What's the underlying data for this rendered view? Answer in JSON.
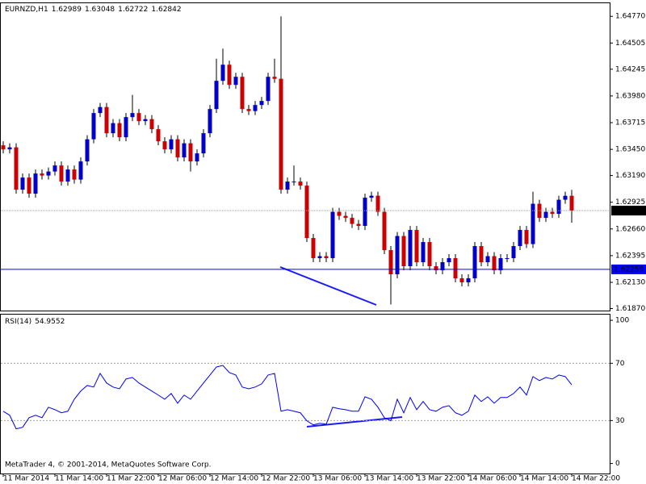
{
  "chart_data": [
    {
      "type": "candlestick",
      "title": "EURNZD,H1",
      "categories": [
        "11 Mar 2014",
        null,
        null,
        null,
        null,
        null,
        null,
        null,
        "11 Mar 14:00",
        null,
        null,
        null,
        null,
        null,
        null,
        null,
        "11 Mar 22:00",
        null,
        null,
        null,
        null,
        null,
        null,
        null,
        "12 Mar 06:00",
        null,
        null,
        null,
        null,
        null,
        null,
        null,
        "12 Mar 14:00",
        null,
        null,
        null,
        null,
        null,
        null,
        null,
        "12 Mar 22:00",
        null,
        null,
        null,
        null,
        null,
        null,
        null,
        "13 Mar 06:00",
        null,
        null,
        null,
        null,
        null,
        null,
        null,
        "13 Mar 14:00",
        null,
        null,
        null,
        null,
        null,
        null,
        null,
        "13 Mar 22:00",
        null,
        null,
        null,
        null,
        null,
        null,
        null,
        "14 Mar 06:00",
        null,
        null,
        null,
        null,
        null,
        null,
        null,
        "14 Mar 14:00",
        null,
        null,
        null,
        null,
        null,
        null,
        null,
        "14 Mar 22:00"
      ],
      "open": [
        1.6349,
        1.6345,
        1.6347,
        1.6305,
        1.6317,
        1.6301,
        1.6321,
        1.6319,
        1.6323,
        1.6329,
        1.6313,
        1.6325,
        1.6315,
        1.6333,
        1.6355,
        1.6381,
        1.6387,
        1.6361,
        1.6371,
        1.6357,
        1.6377,
        1.6381,
        1.6373,
        1.6375,
        1.6365,
        1.6353,
        1.6345,
        1.6355,
        1.6337,
        1.6351,
        1.6333,
        1.6341,
        1.6361,
        1.6385,
        1.6413,
        1.6429,
        1.6409,
        1.6417,
        1.6385,
        1.6383,
        1.6389,
        1.6393,
        1.6417,
        1.6415,
        1.6305,
        1.6313,
        1.6313,
        1.6309,
        1.6257,
        1.6237,
        1.6239,
        1.6237,
        1.6283,
        1.6279,
        1.6277,
        1.6271,
        1.6269,
        1.6297,
        1.6299,
        1.6283,
        1.6245,
        1.6221,
        1.6259,
        1.6229,
        1.6265,
        1.6233,
        1.6253,
        1.6229,
        1.6225,
        1.6233,
        1.6237,
        1.6217,
        1.6213,
        1.6217,
        1.6249,
        1.6233,
        1.6239,
        1.6225,
        1.6237,
        1.6237,
        1.6249,
        1.6265,
        1.6251,
        1.6291,
        1.6277,
        1.6283,
        1.6281,
        1.6295,
        1.62989
      ],
      "high": [
        1.6353,
        1.6351,
        1.6351,
        1.6321,
        1.6321,
        1.6325,
        1.6325,
        1.6327,
        1.6333,
        1.6333,
        1.6329,
        1.6329,
        1.6337,
        1.6359,
        1.6385,
        1.6391,
        1.6391,
        1.6375,
        1.6375,
        1.6381,
        1.6399,
        1.6385,
        1.6379,
        1.6379,
        1.6369,
        1.6357,
        1.6359,
        1.6359,
        1.6355,
        1.6355,
        1.6345,
        1.6365,
        1.6389,
        1.6435,
        1.6445,
        1.6433,
        1.6421,
        1.6421,
        1.6389,
        1.6393,
        1.6397,
        1.6421,
        1.6435,
        1.6477,
        1.6317,
        1.6329,
        1.6317,
        1.6313,
        1.6261,
        1.6243,
        1.6243,
        1.6287,
        1.6287,
        1.6283,
        1.6281,
        1.6275,
        1.6301,
        1.6303,
        1.6303,
        1.6287,
        1.6249,
        1.6263,
        1.6263,
        1.6269,
        1.6269,
        1.6257,
        1.6257,
        1.6233,
        1.6237,
        1.6241,
        1.6241,
        1.6221,
        1.6221,
        1.6253,
        1.6253,
        1.6243,
        1.6243,
        1.6241,
        1.6241,
        1.6253,
        1.6269,
        1.6269,
        1.6303,
        1.6295,
        1.6287,
        1.6287,
        1.6299,
        1.6303,
        1.63048
      ],
      "low": [
        1.6341,
        1.6341,
        1.6301,
        1.6301,
        1.6297,
        1.6297,
        1.6315,
        1.6315,
        1.6319,
        1.6309,
        1.6309,
        1.6311,
        1.6311,
        1.6329,
        1.6351,
        1.6377,
        1.6357,
        1.6357,
        1.6353,
        1.6353,
        1.6373,
        1.6369,
        1.6369,
        1.6361,
        1.6349,
        1.6341,
        1.6341,
        1.6333,
        1.6333,
        1.6323,
        1.6329,
        1.6337,
        1.6357,
        1.6381,
        1.6409,
        1.6405,
        1.6405,
        1.6381,
        1.6379,
        1.6379,
        1.6385,
        1.6389,
        1.6411,
        1.6301,
        1.6301,
        1.6309,
        1.6305,
        1.6253,
        1.6233,
        1.6233,
        1.6233,
        1.6233,
        1.6275,
        1.6273,
        1.6267,
        1.6265,
        1.6265,
        1.6293,
        1.6279,
        1.6241,
        1.6191,
        1.6217,
        1.6225,
        1.6225,
        1.6229,
        1.6229,
        1.6225,
        1.6221,
        1.6221,
        1.6229,
        1.6213,
        1.6209,
        1.6209,
        1.6213,
        1.6229,
        1.6229,
        1.6221,
        1.6221,
        1.6233,
        1.6233,
        1.6245,
        1.6247,
        1.6247,
        1.6273,
        1.6273,
        1.6277,
        1.6277,
        1.6291,
        1.62722
      ],
      "close": [
        1.6345,
        1.6347,
        1.6305,
        1.6317,
        1.6301,
        1.6321,
        1.6319,
        1.6323,
        1.6329,
        1.6313,
        1.6325,
        1.6315,
        1.6333,
        1.6355,
        1.6381,
        1.6387,
        1.6361,
        1.6371,
        1.6357,
        1.6377,
        1.6381,
        1.6373,
        1.6375,
        1.6365,
        1.6353,
        1.6345,
        1.6355,
        1.6337,
        1.6351,
        1.6333,
        1.6341,
        1.6361,
        1.6385,
        1.6413,
        1.6429,
        1.6409,
        1.6417,
        1.6385,
        1.6383,
        1.6389,
        1.6393,
        1.6417,
        1.6415,
        1.6305,
        1.6313,
        1.6313,
        1.6309,
        1.6257,
        1.6237,
        1.6239,
        1.6237,
        1.6283,
        1.6279,
        1.6277,
        1.6271,
        1.6269,
        1.6297,
        1.6299,
        1.6283,
        1.6245,
        1.6221,
        1.6259,
        1.6229,
        1.6265,
        1.6233,
        1.6253,
        1.6229,
        1.6225,
        1.6233,
        1.6237,
        1.6217,
        1.6213,
        1.6217,
        1.6249,
        1.6233,
        1.6239,
        1.6225,
        1.6237,
        1.6237,
        1.6249,
        1.6265,
        1.6251,
        1.6291,
        1.6277,
        1.6283,
        1.6281,
        1.6295,
        1.62989,
        1.62842
      ],
      "up_color": "#0000cc",
      "down_color": "#cc0000",
      "wick_color": "#000000",
      "ylim": [
        1.6185,
        1.649
      ],
      "yticks": [
        {
          "value": 1.6477,
          "label": "1.64770"
        },
        1.64505,
        1.64245,
        {
          "value": 1.6398,
          "label": "1.63980"
        },
        1.63715,
        {
          "value": 1.6345,
          "label": "1.63450"
        },
        {
          "value": 1.6319,
          "label": "1.63190"
        },
        1.62925,
        {
          "value": 1.6266,
          "label": "1.62660"
        },
        1.62395,
        {
          "value": 1.6213,
          "label": "1.62130"
        },
        {
          "value": 1.6187,
          "label": "1.61870"
        }
      ],
      "hlines": [
        {
          "value": 1.62259,
          "color": "#0000ff"
        }
      ]
    },
    {
      "type": "line",
      "title": "RSI(14)",
      "color": "#0000ff",
      "values": [
        36.5,
        33.7,
        24.2,
        25.3,
        32.0,
        33.7,
        32.0,
        39.3,
        37.6,
        35.4,
        36.5,
        44.9,
        50.6,
        54.5,
        53.4,
        62.9,
        56.2,
        53.4,
        52.2,
        59.0,
        60.1,
        56.2,
        53.4,
        50.6,
        47.8,
        44.9,
        48.9,
        42.1,
        47.8,
        44.9,
        50.6,
        56.2,
        61.8,
        67.4,
        68.5,
        63.5,
        61.8,
        53.4,
        52.2,
        53.4,
        55.6,
        61.8,
        62.9,
        36.5,
        37.6,
        36.5,
        35.4,
        29.8,
        27.0,
        28.1,
        27.5,
        39.3,
        38.2,
        37.6,
        36.5,
        36.5,
        46.6,
        44.9,
        39.3,
        32.0,
        29.8,
        44.9,
        35.4,
        46.1,
        37.6,
        43.3,
        37.6,
        36.5,
        39.3,
        40.4,
        35.4,
        33.7,
        36.5,
        47.8,
        43.3,
        46.6,
        42.1,
        46.1,
        46.1,
        48.9,
        53.4,
        47.8,
        60.7,
        57.9,
        60.1,
        59.0,
        61.8,
        60.7,
        54.9552
      ],
      "ylim": [
        -7,
        104
      ],
      "yticks": [
        100,
        70,
        30,
        0
      ],
      "levels": [
        70,
        30
      ]
    }
  ],
  "footer": "MetaTrader 4, © 2001-2014, MetaQuotes Software Corp."
}
